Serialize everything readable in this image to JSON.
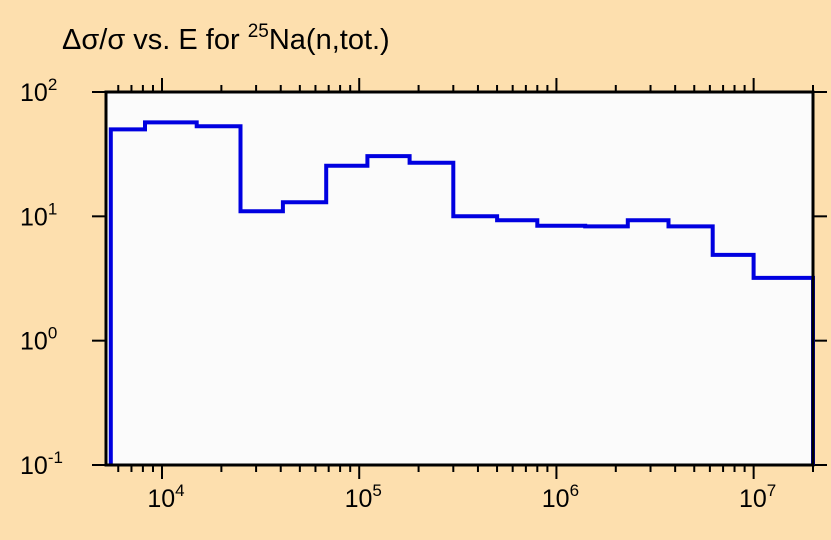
{
  "chart_data": {
    "type": "line",
    "title_parts": {
      "prefix": "Δσ/σ vs. E for ",
      "superscript": "25",
      "suffix": "Na(n,tot.)"
    },
    "xscale": "log",
    "yscale": "log",
    "xlim": [
      5200,
      20000000
    ],
    "ylim": [
      0.1,
      100
    ],
    "x_ticks": [
      {
        "value": 10000,
        "base": "10",
        "exp": "4"
      },
      {
        "value": 100000,
        "base": "10",
        "exp": "5"
      },
      {
        "value": 1000000,
        "base": "10",
        "exp": "6"
      },
      {
        "value": 10000000,
        "base": "10",
        "exp": "7"
      }
    ],
    "y_ticks": [
      {
        "value": 100,
        "base": "10",
        "exp": "2"
      },
      {
        "value": 10,
        "base": "10",
        "exp": "1"
      },
      {
        "value": 1,
        "base": "10",
        "exp": "0"
      },
      {
        "value": 0.1,
        "base": "10",
        "exp": "-1"
      }
    ],
    "step_edges": [
      5500,
      8200,
      15000,
      25000,
      41000,
      68000,
      110000,
      180000,
      300000,
      500000,
      800000,
      1400000,
      2300000,
      3700000,
      6200000,
      10000000,
      20000000
    ],
    "step_values": [
      50,
      57,
      53,
      11,
      13,
      25.5,
      30.5,
      27,
      10,
      9.3,
      8.4,
      8.3,
      9.3,
      8.3,
      4.9,
      3.2
    ],
    "grid": false,
    "colors": {
      "series": "#0000e0",
      "frame": "#000000",
      "plot_background": "#fbfbfb",
      "page_background": "#fddfae"
    }
  }
}
